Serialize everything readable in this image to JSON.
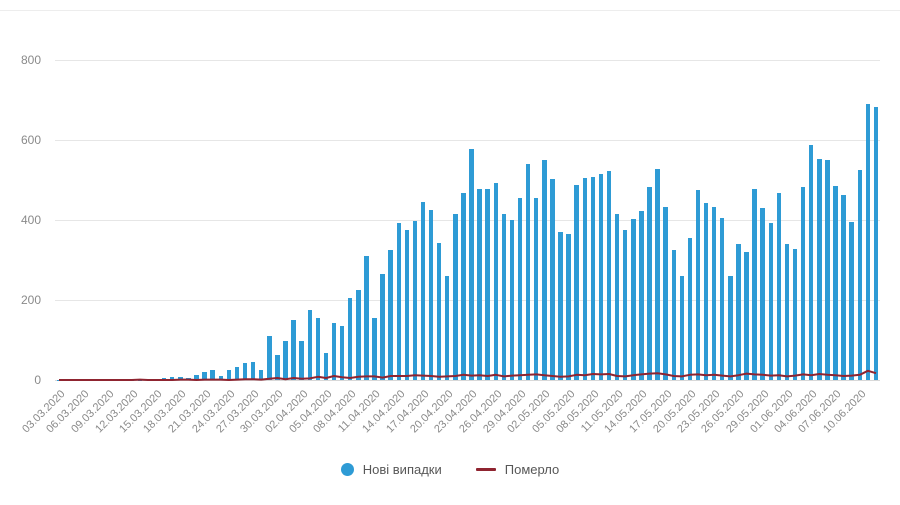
{
  "chart_data": {
    "type": "bar",
    "title": "",
    "xlabel": "",
    "ylabel": "",
    "ylim": [
      0,
      800
    ],
    "yticks": [
      0,
      200,
      400,
      600,
      800
    ],
    "x_tick_every": 3,
    "grid": "horizontal",
    "legend_position": "bottom",
    "background": "#ffffff",
    "x": [
      "03.03.2020",
      "04.03.2020",
      "05.03.2020",
      "06.03.2020",
      "07.03.2020",
      "08.03.2020",
      "09.03.2020",
      "10.03.2020",
      "11.03.2020",
      "12.03.2020",
      "13.03.2020",
      "14.03.2020",
      "15.03.2020",
      "16.03.2020",
      "17.03.2020",
      "18.03.2020",
      "19.03.2020",
      "20.03.2020",
      "21.03.2020",
      "22.03.2020",
      "23.03.2020",
      "24.03.2020",
      "25.03.2020",
      "26.03.2020",
      "27.03.2020",
      "28.03.2020",
      "29.03.2020",
      "30.03.2020",
      "31.03.2020",
      "01.04.2020",
      "02.04.2020",
      "03.04.2020",
      "04.04.2020",
      "05.04.2020",
      "06.04.2020",
      "07.04.2020",
      "08.04.2020",
      "09.04.2020",
      "10.04.2020",
      "11.04.2020",
      "12.04.2020",
      "13.04.2020",
      "14.04.2020",
      "15.04.2020",
      "16.04.2020",
      "17.04.2020",
      "18.04.2020",
      "19.04.2020",
      "20.04.2020",
      "21.04.2020",
      "22.04.2020",
      "23.04.2020",
      "24.04.2020",
      "25.04.2020",
      "26.04.2020",
      "27.04.2020",
      "28.04.2020",
      "29.04.2020",
      "30.04.2020",
      "01.05.2020",
      "02.05.2020",
      "03.05.2020",
      "04.05.2020",
      "05.05.2020",
      "06.05.2020",
      "07.05.2020",
      "08.05.2020",
      "09.05.2020",
      "10.05.2020",
      "11.05.2020",
      "12.05.2020",
      "13.05.2020",
      "14.05.2020",
      "15.05.2020",
      "16.05.2020",
      "17.05.2020",
      "18.05.2020",
      "19.05.2020",
      "20.05.2020",
      "21.05.2020",
      "22.05.2020",
      "23.05.2020",
      "24.05.2020",
      "25.05.2020",
      "26.05.2020",
      "27.05.2020",
      "28.05.2020",
      "29.05.2020",
      "30.05.2020",
      "31.05.2020",
      "01.06.2020",
      "02.06.2020",
      "03.06.2020",
      "04.06.2020",
      "05.06.2020",
      "06.06.2020",
      "07.06.2020",
      "08.06.2020",
      "09.06.2020",
      "10.06.2020",
      "11.06.2020",
      "12.06.2020"
    ],
    "series": [
      {
        "name": "Нові випадки",
        "type": "bar",
        "color": "#2e9bd5",
        "values": [
          1,
          0,
          0,
          0,
          0,
          0,
          0,
          0,
          1,
          1,
          1,
          0,
          1,
          4,
          7,
          7,
          5,
          12,
          21,
          26,
          9,
          24,
          32,
          43,
          46,
          26,
          109,
          62,
          97,
          149,
          97,
          175,
          154,
          68,
          143,
          135,
          206,
          224,
          311,
          154,
          266,
          325,
          392,
          375,
          397,
          444,
          425,
          343,
          261,
          415,
          467,
          578,
          477,
          478,
          492,
          415,
          401,
          456,
          540,
          455,
          550,
          502,
          371,
          366,
          487,
          504,
          508,
          515,
          522,
          416,
          375,
          402,
          422,
          483,
          528,
          433,
          325,
          260,
          354,
          476,
          442,
          432,
          406,
          259,
          339,
          321,
          477,
          429,
          393,
          468,
          340,
          328,
          483,
          588,
          553,
          550,
          485,
          463,
          394,
          525,
          689,
          683
        ]
      },
      {
        "name": "Померло",
        "type": "line",
        "color": "#8f2430",
        "values": [
          0,
          0,
          0,
          0,
          0,
          0,
          0,
          0,
          0,
          0,
          1,
          0,
          0,
          0,
          0,
          1,
          1,
          0,
          1,
          1,
          1,
          0,
          1,
          2,
          2,
          1,
          3,
          5,
          2,
          5,
          3,
          4,
          8,
          5,
          10,
          7,
          5,
          8,
          9,
          9,
          6,
          10,
          10,
          10,
          12,
          11,
          10,
          8,
          9,
          10,
          13,
          11,
          12,
          10,
          13,
          9,
          11,
          12,
          13,
          14,
          12,
          10,
          8,
          9,
          13,
          12,
          15,
          14,
          15,
          10,
          9,
          12,
          14,
          16,
          17,
          14,
          10,
          9,
          13,
          14,
          12,
          13,
          11,
          9,
          12,
          16,
          14,
          13,
          11,
          12,
          9,
          11,
          14,
          12,
          15,
          13,
          12,
          10,
          11,
          13,
          23,
          17
        ]
      }
    ]
  },
  "legend": {
    "cases_label": "Нові випадки",
    "deaths_label": "Померло"
  }
}
